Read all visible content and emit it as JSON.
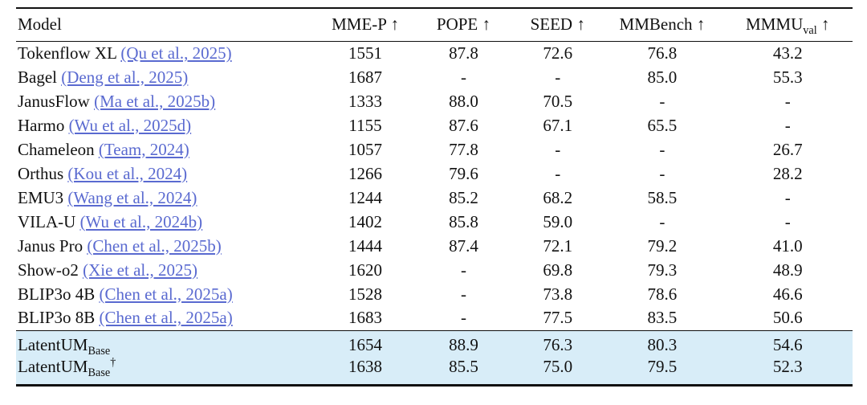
{
  "table": {
    "colors": {
      "highlight_bg": "#d8edf8",
      "link": "#5a6ad0",
      "rule": "#111111",
      "text": "#111111"
    },
    "columns": [
      {
        "key": "model",
        "label": "Model",
        "subscript": "",
        "arrow": ""
      },
      {
        "key": "mme-p",
        "label": "MME-P",
        "subscript": "",
        "arrow": "↑"
      },
      {
        "key": "pope",
        "label": "POPE",
        "subscript": "",
        "arrow": "↑"
      },
      {
        "key": "seed",
        "label": "SEED",
        "subscript": "",
        "arrow": "↑"
      },
      {
        "key": "mmbench",
        "label": "MMBench",
        "subscript": "",
        "arrow": "↑"
      },
      {
        "key": "mmmu",
        "label": "MMMU",
        "subscript": "val",
        "arrow": "↑"
      }
    ],
    "rows": [
      {
        "model": "Tokenflow XL",
        "citation": "(Qu et al., 2025)",
        "values": [
          "1551",
          "87.8",
          "72.6",
          "76.8",
          "43.2"
        ]
      },
      {
        "model": "Bagel",
        "citation": "(Deng et al., 2025)",
        "values": [
          "1687",
          "-",
          "-",
          "85.0",
          "55.3"
        ]
      },
      {
        "model": "JanusFlow",
        "citation": "(Ma et al., 2025b)",
        "values": [
          "1333",
          "88.0",
          "70.5",
          "-",
          "-"
        ]
      },
      {
        "model": "Harmo",
        "citation": "(Wu et al., 2025d)",
        "values": [
          "1155",
          "87.6",
          "67.1",
          "65.5",
          "-"
        ]
      },
      {
        "model": "Chameleon",
        "citation": "(Team, 2024)",
        "values": [
          "1057",
          "77.8",
          "-",
          "-",
          "26.7"
        ]
      },
      {
        "model": "Orthus",
        "citation": "(Kou et al., 2024)",
        "values": [
          "1266",
          "79.6",
          "-",
          "-",
          "28.2"
        ]
      },
      {
        "model": "EMU3",
        "citation": "(Wang et al., 2024)",
        "values": [
          "1244",
          "85.2",
          "68.2",
          "58.5",
          "-"
        ]
      },
      {
        "model": "VILA-U",
        "citation": "(Wu et al., 2024b)",
        "values": [
          "1402",
          "85.8",
          "59.0",
          "-",
          "-"
        ]
      },
      {
        "model": "Janus Pro",
        "citation": "(Chen et al., 2025b)",
        "values": [
          "1444",
          "87.4",
          "72.1",
          "79.2",
          "41.0"
        ]
      },
      {
        "model": "Show-o2",
        "citation": "(Xie et al., 2025)",
        "values": [
          "1620",
          "-",
          "69.8",
          "79.3",
          "48.9"
        ]
      },
      {
        "model": "BLIP3o 4B",
        "citation": "(Chen et al., 2025a)",
        "values": [
          "1528",
          "-",
          "73.8",
          "78.6",
          "46.6"
        ]
      },
      {
        "model": "BLIP3o 8B",
        "citation": "(Chen et al., 2025a)",
        "values": [
          "1683",
          "-",
          "77.5",
          "83.5",
          "50.6"
        ]
      }
    ],
    "highlighted_rows": [
      {
        "model": "LatentUM",
        "subscript": "Base",
        "superscript": "",
        "values": [
          "1654",
          "88.9",
          "76.3",
          "80.3",
          "54.6"
        ]
      },
      {
        "model": "LatentUM",
        "subscript": "Base",
        "superscript": "†",
        "values": [
          "1638",
          "85.5",
          "75.0",
          "79.5",
          "52.3"
        ]
      }
    ]
  }
}
